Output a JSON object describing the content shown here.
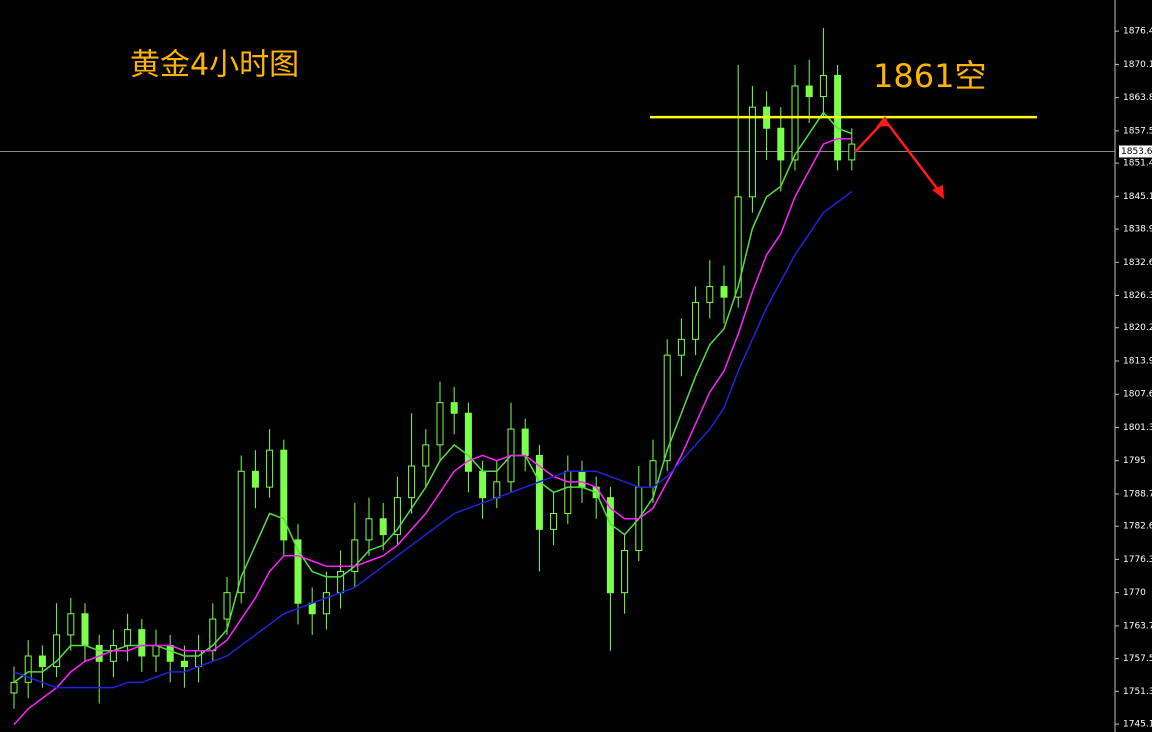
{
  "chart_data": {
    "type": "candlestick",
    "title": "黄金4小时图",
    "annotation": "1861空",
    "open": [
      1751,
      1753,
      1758,
      1756,
      1762,
      1766,
      1760,
      1757,
      1760,
      1763,
      1758,
      1760,
      1757,
      1756,
      1759,
      1765,
      1770,
      1793,
      1790,
      1797,
      1780,
      1768,
      1766,
      1770,
      1774,
      1780,
      1784,
      1781,
      1788,
      1794,
      1798,
      1806,
      1804,
      1793,
      1788,
      1791,
      1801,
      1796,
      1782,
      1785,
      1793,
      1790,
      1788,
      1770,
      1778,
      1790,
      1795,
      1815,
      1818,
      1825,
      1828,
      1826,
      1845,
      1862,
      1858,
      1852,
      1866,
      1864,
      1868,
      1852
    ],
    "high": [
      1756,
      1761,
      1760,
      1768,
      1769,
      1768,
      1762,
      1763,
      1766,
      1765,
      1763,
      1762,
      1760,
      1762,
      1768,
      1773,
      1796,
      1797,
      1801,
      1799,
      1783,
      1771,
      1774,
      1778,
      1787,
      1788,
      1787,
      1792,
      1804,
      1801,
      1810,
      1809,
      1806,
      1795,
      1795,
      1806,
      1803,
      1798,
      1789,
      1796,
      1795,
      1792,
      1790,
      1781,
      1794,
      1799,
      1818,
      1822,
      1828,
      1833,
      1832,
      1870,
      1866,
      1865,
      1862,
      1870,
      1871,
      1877,
      1870,
      1858
    ],
    "low": [
      1748,
      1750,
      1752,
      1754,
      1759,
      1757,
      1749,
      1754,
      1757,
      1755,
      1755,
      1753,
      1752,
      1753,
      1757,
      1762,
      1768,
      1786,
      1788,
      1777,
      1764,
      1762,
      1763,
      1767,
      1771,
      1777,
      1778,
      1779,
      1785,
      1790,
      1795,
      1800,
      1789,
      1784,
      1786,
      1789,
      1793,
      1774,
      1779,
      1783,
      1787,
      1784,
      1759,
      1766,
      1776,
      1787,
      1793,
      1811,
      1815,
      1822,
      1821,
      1824,
      1842,
      1852,
      1846,
      1850,
      1859,
      1860,
      1850,
      1850
    ],
    "close": [
      1753,
      1758,
      1756,
      1762,
      1766,
      1760,
      1757,
      1760,
      1763,
      1758,
      1760,
      1757,
      1756,
      1759,
      1765,
      1770,
      1793,
      1790,
      1797,
      1780,
      1768,
      1766,
      1770,
      1774,
      1780,
      1784,
      1781,
      1788,
      1794,
      1798,
      1806,
      1804,
      1793,
      1788,
      1791,
      1801,
      1796,
      1782,
      1785,
      1793,
      1790,
      1788,
      1770,
      1778,
      1790,
      1795,
      1815,
      1818,
      1825,
      1828,
      1826,
      1845,
      1862,
      1858,
      1852,
      1866,
      1864,
      1868,
      1852,
      1855
    ],
    "up_color": "#7cff4a",
    "down_color": "#7cff4a",
    "moving_averages": [
      {
        "color": "#55dd44",
        "values": [
          1753,
          1755,
          1755,
          1757,
          1760,
          1760,
          1759,
          1759,
          1760,
          1760,
          1760,
          1759,
          1758,
          1758,
          1760,
          1763,
          1773,
          1779,
          1785,
          1784,
          1778,
          1774,
          1773,
          1773,
          1775,
          1778,
          1779,
          1782,
          1786,
          1790,
          1795,
          1798,
          1796,
          1793,
          1793,
          1796,
          1796,
          1791,
          1789,
          1790,
          1790,
          1789,
          1783,
          1781,
          1784,
          1788,
          1797,
          1804,
          1811,
          1817,
          1820,
          1828,
          1839,
          1845,
          1847,
          1853,
          1857,
          1861,
          1858,
          1857
        ]
      },
      {
        "color": "#ff22ff",
        "values": [
          1745,
          1748,
          1750,
          1752,
          1755,
          1757,
          1758,
          1759,
          1759,
          1760,
          1760,
          1760,
          1759,
          1759,
          1759,
          1761,
          1765,
          1769,
          1774,
          1777,
          1777,
          1776,
          1775,
          1775,
          1775,
          1776,
          1777,
          1779,
          1782,
          1785,
          1789,
          1793,
          1795,
          1796,
          1795,
          1796,
          1796,
          1794,
          1792,
          1791,
          1791,
          1790,
          1786,
          1784,
          1784,
          1786,
          1791,
          1796,
          1802,
          1808,
          1812,
          1819,
          1827,
          1834,
          1838,
          1845,
          1850,
          1855,
          1856,
          1856
        ]
      },
      {
        "color": "#2222dd",
        "values": [
          1755,
          1754,
          1753,
          1752,
          1752,
          1752,
          1752,
          1752,
          1753,
          1753,
          1754,
          1755,
          1755,
          1756,
          1757,
          1758,
          1760,
          1762,
          1764,
          1766,
          1767,
          1768,
          1769,
          1770,
          1771,
          1773,
          1775,
          1777,
          1779,
          1781,
          1783,
          1785,
          1786,
          1787,
          1788,
          1789,
          1790,
          1791,
          1792,
          1793,
          1793,
          1793,
          1792,
          1791,
          1790,
          1790,
          1792,
          1795,
          1798,
          1801,
          1805,
          1812,
          1818,
          1824,
          1829,
          1834,
          1838,
          1842,
          1844,
          1846
        ]
      }
    ],
    "level": 1860.1,
    "level_color": "#ffff00",
    "current_price": 1853.6,
    "ylim": [
      1743.6,
      1882.3
    ],
    "yticks": [
      1745.1,
      1751.3,
      1757.5,
      1763.7,
      1770.0,
      1776.3,
      1782.6,
      1788.7,
      1795.0,
      1801.3,
      1807.6,
      1813.9,
      1820.2,
      1826.3,
      1832.6,
      1838.9,
      1845.1,
      1851.4,
      1857.5,
      1863.8,
      1870.1,
      1876.4
    ]
  }
}
